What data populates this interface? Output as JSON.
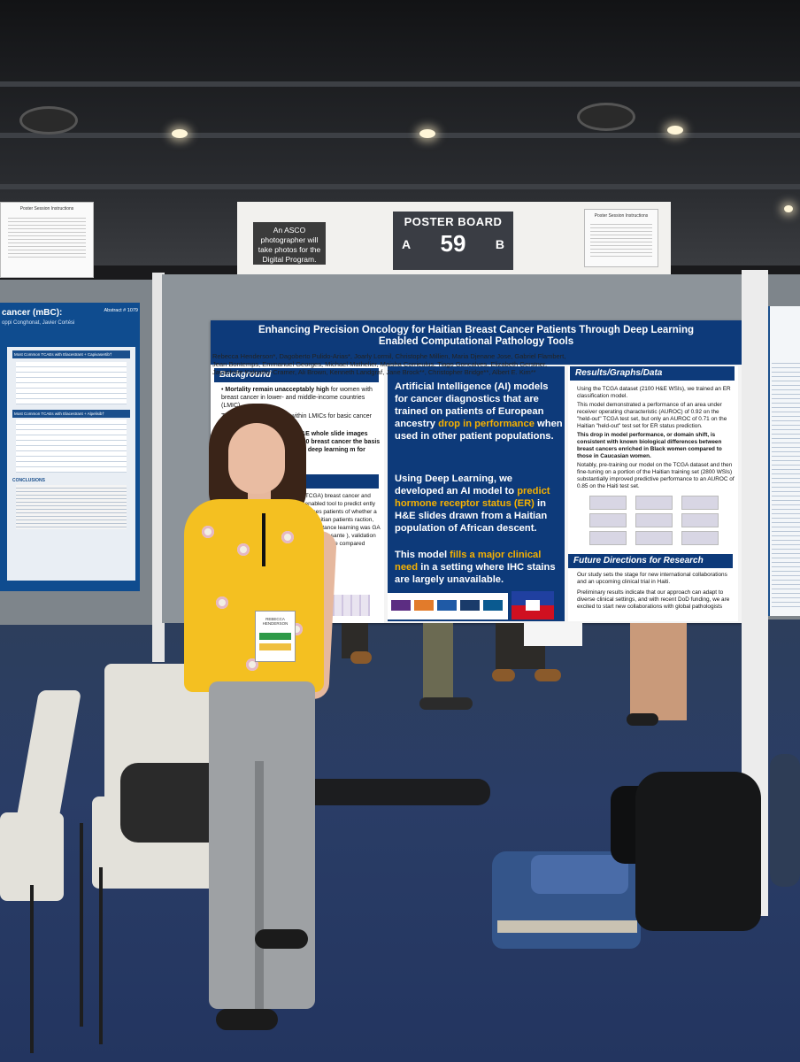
{
  "booth": {
    "asco_note": "An ASCO photographer will take photos for the Digital Program.",
    "board_title": "POSTER BOARD",
    "board_side_a": "A",
    "board_number": "59",
    "board_side_b": "B",
    "instructions_left": "Poster Session Instructions",
    "instructions_right": "Poster Session Instructions"
  },
  "left_poster": {
    "title_fragment": "cancer (mBC):",
    "authors_fragment": "oppi Conghonat, Javier Cortési",
    "abstract": "Abstract # 1079",
    "section_1": "Most Common TCAEs with Elacestrant + Capivasertib†",
    "section_2": "Most Common TCAEs with Elacestrant + Alpelisib†",
    "section_3": "CONCLUSIONS"
  },
  "poster": {
    "title": "Enhancing Precision Oncology for Haitian Breast Cancer Patients Through Deep Learning Enabled Computational Pathology Tools",
    "authors": "Rebecca Henderson*, Dagoberto Pulido-Arias*, Joarly Lormil, Christophe Millien, Maria Djenane Jose, Gabriel Flambert, Jean Bontemps, Emmanuel Georges, Michael Mathelier, Maisha Corrieulus, Tiago Goncalves, Elizabeth Gerstner, Jayashree Kalpathy-Cramer, Ali Brown, Kenneth Landgraf, Jane Brock**, Christopher Bridge**, Albert E. Kim**",
    "background": {
      "heading": "Background",
      "bullet_1_bold": "Mortality remain unacceptably high",
      "bullet_1_rest": "for women with breast cancer in lower- and middle-income countries (LMIC).",
      "bullet_2": "This is due to an inability within LMICs for basic cancer diagnostics (e.g.,",
      "bullet_3": "dataset of H&E whole slide images status for 5500 breast cancer the basis of H&E to use deep learning m for breast cancer"
    },
    "methods_fragment": "as (TCGA) breast cancer and DL-enabled tool to predict ently comprises patients of whether a TCGA-Haitian patients raction, attention-stance learning was GA and Zanmi Lasante ), validation (15%), and were compared across",
    "center": {
      "p1_pre": "Artificial Intelligence (AI) models for cancer diagnostics that are trained on patients of European ancestry",
      "p1_hl": "drop in performance",
      "p1_post": "when used in other patient populations.",
      "p2_pre": "Using Deep Learning, we developed an AI model to",
      "p2_hl": "predict hormone receptor status (ER)",
      "p2_post": "in H&E slides drawn from a Haitian population of African descent.",
      "p3_pre": "This model",
      "p3_hl": "fills a major clinical need",
      "p3_post": "in a setting where IHC stains are largely unavailable."
    },
    "results": {
      "heading": "Results/Graphs/Data",
      "b1": "Using the TCGA dataset (2100 H&E WSIs), we trained an ER classification model.",
      "b2": "This model demonstrated a performance of an area under receiver operating characteristic (AUROC) of 0.92 on the \"held-out\" TCGA test set, but only an AUROC of 0.71 on the Haitian \"held-out\" test set for ER status prediction.",
      "b3": "This drop in model performance, or domain shift, is consistent with known biological differences between breast cancers enriched in Black women compared to those in Caucasian women.",
      "b4": "Notably, pre-training our model on the TCGA dataset and then fine-tuning on a portion of the Haitian training set (2800 WSIs) substantially improved predictive performance to an AUROC of 0.85 on the Haiti test set."
    },
    "future": {
      "heading": "Future Directions for Research",
      "b1": "Our study sets the stage for new international collaborations and an upcoming clinical trial in Haiti.",
      "b2": "Preliminary results indicate that our approach can adapt to diverse clinical settings, and with recent DoD funding, we are excited to start new collaborations with global pathologists"
    }
  },
  "badge": {
    "text": "REBECCA HENDERSON"
  },
  "colors": {
    "poster_blue": "#0d3a7a",
    "highlight": "#f6b100",
    "top_yellow": "#f4c021",
    "carpet": "#2a3d66"
  }
}
